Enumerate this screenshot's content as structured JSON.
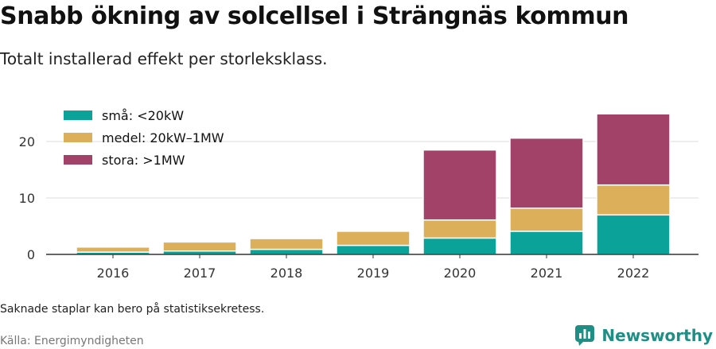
{
  "header": {
    "title": "Snabb ökning av solcellsel i Strängnäs kommun",
    "subtitle": "Totalt installerad effekt per storleksklass."
  },
  "footer": {
    "note": "Saknade staplar kan bero på statistiksekretess.",
    "source": "Källa: Energimyndigheten",
    "brand": "Newsworthy"
  },
  "colors": {
    "small": "#0ba29a",
    "medium": "#dcaf5b",
    "large": "#a34268"
  },
  "chart_data": {
    "type": "bar",
    "stacked": true,
    "title": "Snabb ökning av solcellsel i Strängnäs kommun",
    "subtitle": "Totalt installerad effekt per storleksklass.",
    "categories": [
      "2016",
      "2017",
      "2018",
      "2019",
      "2020",
      "2021",
      "2022"
    ],
    "series": [
      {
        "name": "små: <20kW",
        "color": "#0ba29a",
        "values": [
          0.4,
          0.6,
          0.9,
          1.6,
          2.9,
          4.1,
          7.0
        ]
      },
      {
        "name": "medel: 20kW–1MW",
        "color": "#dcaf5b",
        "values": [
          0.9,
          1.6,
          1.9,
          2.5,
          3.2,
          4.1,
          5.3
        ]
      },
      {
        "name": "stora: >1MW",
        "color": "#a34268",
        "values": [
          0,
          0,
          0,
          0,
          12.4,
          12.4,
          12.6
        ]
      }
    ],
    "yticks": [
      0,
      10,
      20
    ],
    "ylim": [
      0,
      27
    ],
    "grid": true,
    "legend": "top-left"
  }
}
